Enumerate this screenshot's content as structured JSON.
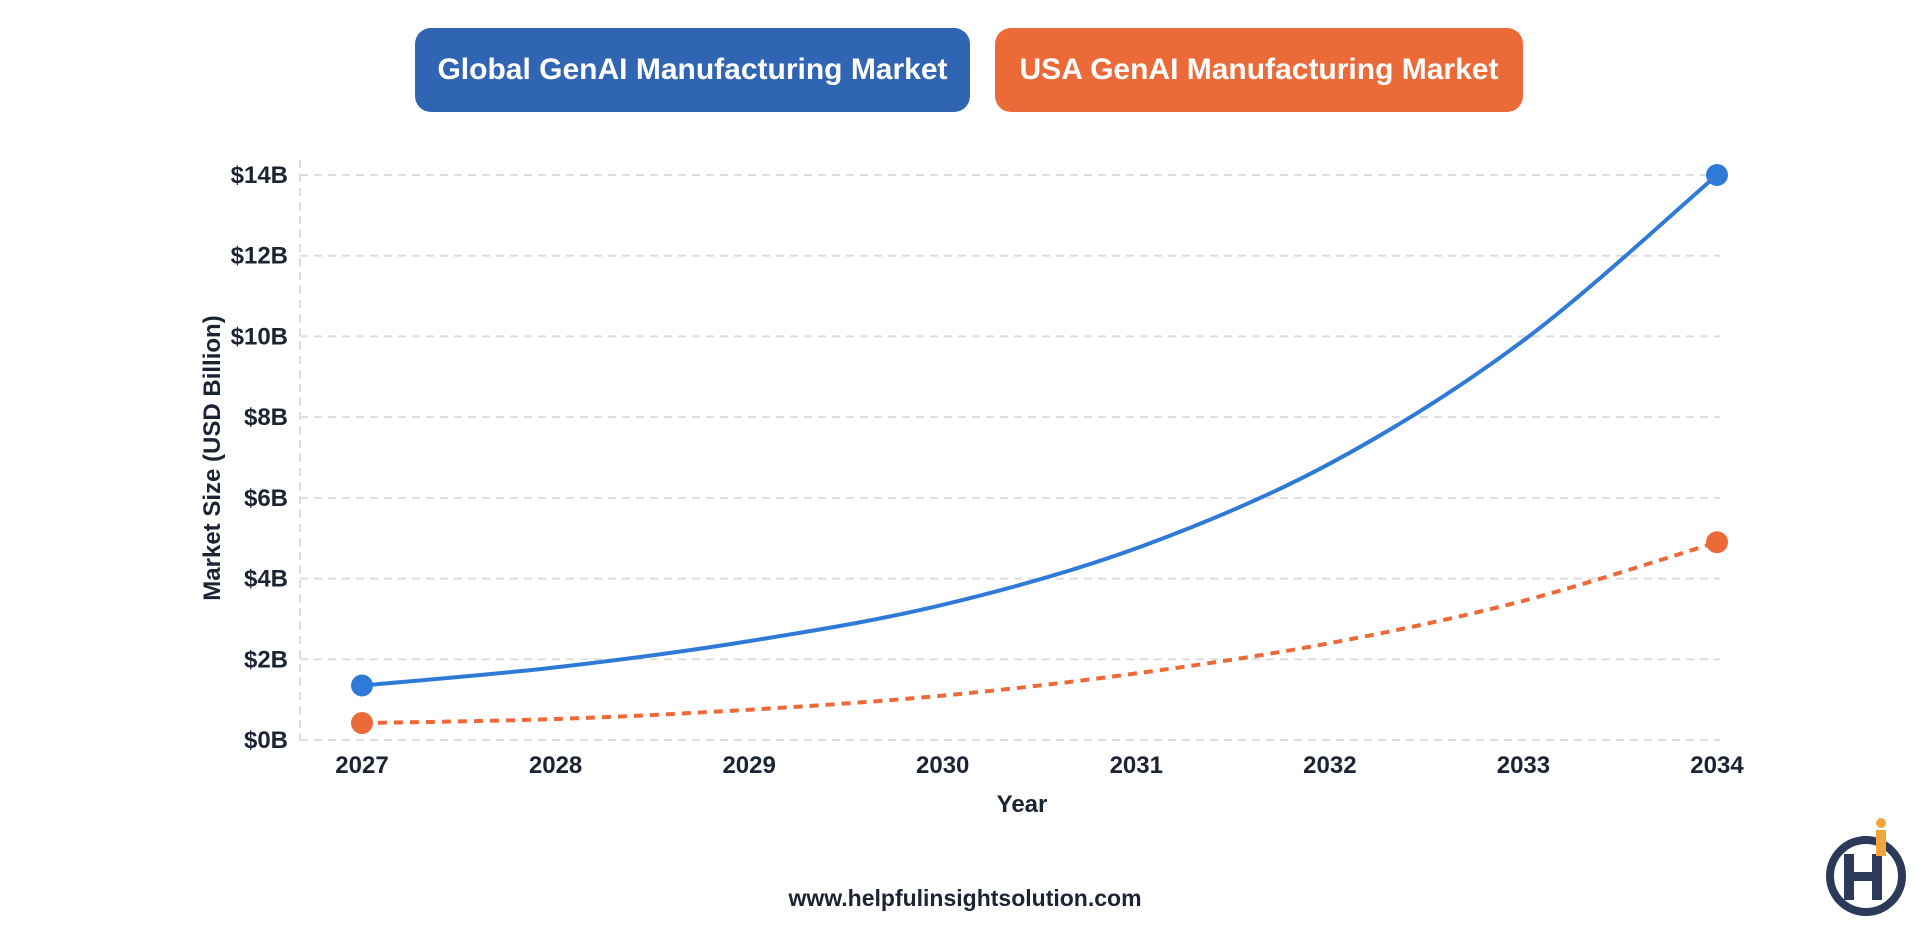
{
  "colors": {
    "global": "#3065b3",
    "global_line": "#2f7ad6",
    "usa": "#ec6a37",
    "grid": "#dddddd",
    "text": "#1c2333",
    "logo_navy": "#2b3a58",
    "logo_gold": "#f0a63a"
  },
  "footer": {
    "website": "www.helpfulinsightsolution.com"
  },
  "logo": {
    "icon": "hi-logo-icon"
  },
  "chart_data": {
    "type": "line",
    "x": [
      "2027",
      "2028",
      "2029",
      "2030",
      "2031",
      "2032",
      "2033",
      "2034"
    ],
    "xlabel": "Year",
    "ylabel": "Market Size (USD Billion)",
    "ylim": [
      0,
      14
    ],
    "yticks": [
      0,
      2,
      4,
      6,
      8,
      10,
      12,
      14
    ],
    "ytick_labels": [
      "$0B",
      "$2B",
      "$4B",
      "$6B",
      "$8B",
      "$10B",
      "$12B",
      "$14B"
    ],
    "grid": true,
    "legend_placement": "top-center",
    "series": [
      {
        "name": "Global GenAI Manufacturing Market",
        "style": "solid",
        "values": [
          1.35,
          1.8,
          2.45,
          3.35,
          4.75,
          6.85,
          9.9,
          14.0
        ]
      },
      {
        "name": "USA GenAI Manufacturing Market",
        "style": "dashed",
        "values": [
          0.42,
          0.52,
          0.75,
          1.1,
          1.65,
          2.4,
          3.45,
          4.9
        ]
      }
    ]
  }
}
